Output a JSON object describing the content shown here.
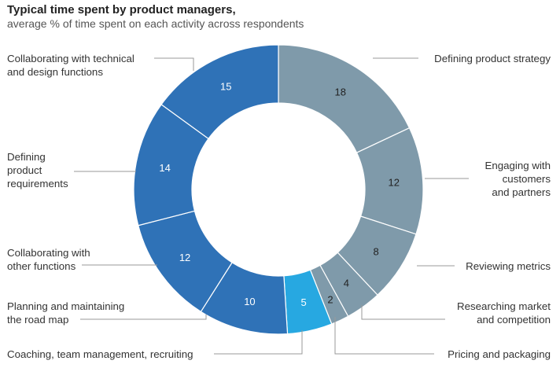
{
  "chart_data": {
    "type": "donut",
    "title": "Typical time spent by product managers,",
    "subtitle": "average % of time spent on each activity across respondents",
    "unit": "%",
    "slices": [
      {
        "label_lines": [
          "Defining product strategy"
        ],
        "value": 18,
        "color": "#7f9aaa"
      },
      {
        "label_lines": [
          "Engaging with",
          "customers",
          "and partners"
        ],
        "value": 12,
        "color": "#7f9aaa"
      },
      {
        "label_lines": [
          "Reviewing metrics"
        ],
        "value": 8,
        "color": "#7f9aaa"
      },
      {
        "label_lines": [
          "Researching market",
          "and competition"
        ],
        "value": 4,
        "color": "#7f9aaa"
      },
      {
        "label_lines": [
          "Pricing and packaging"
        ],
        "value": 2,
        "color": "#7f9aaa"
      },
      {
        "label_lines": [
          "Coaching, team management, recruiting"
        ],
        "value": 5,
        "color": "#27a8e1"
      },
      {
        "label_lines": [
          "Planning and maintaining",
          "the road map"
        ],
        "value": 10,
        "color": "#2f72b7"
      },
      {
        "label_lines": [
          "Collaborating with",
          "other functions"
        ],
        "value": 12,
        "color": "#2f72b7"
      },
      {
        "label_lines": [
          "Defining",
          "product",
          "requirements"
        ],
        "value": 14,
        "color": "#2f72b7"
      },
      {
        "label_lines": [
          "Collaborating with technical",
          "and design functions"
        ],
        "value": 15,
        "color": "#2f72b7"
      }
    ]
  }
}
